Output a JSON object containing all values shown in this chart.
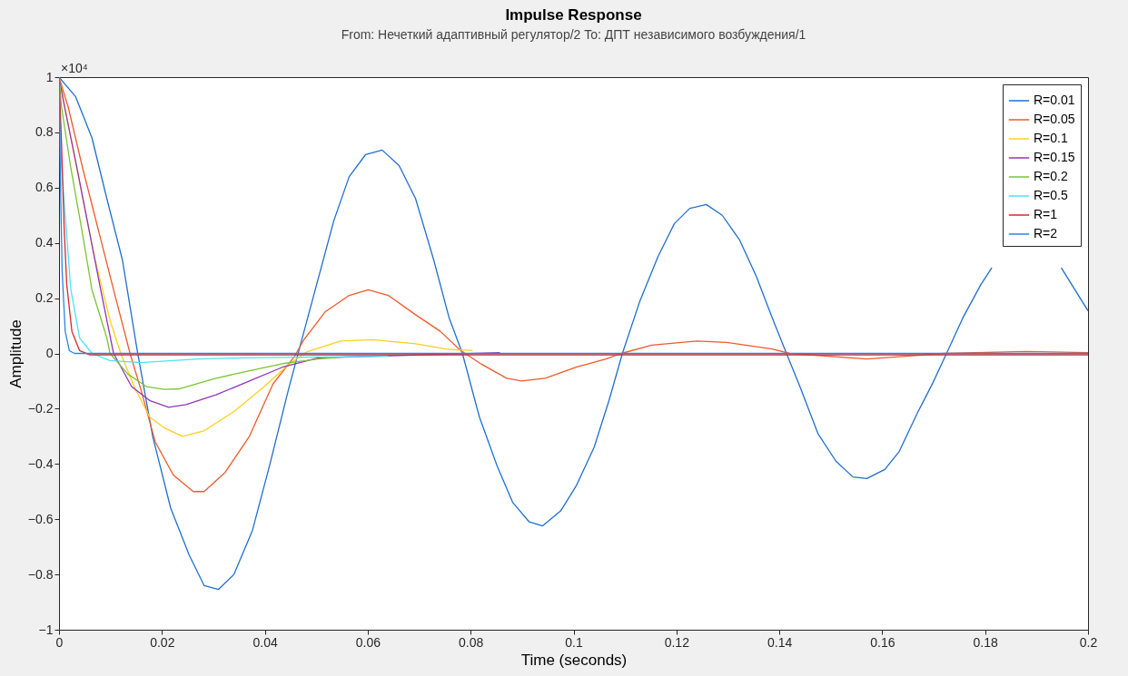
{
  "chart_data": {
    "type": "line",
    "title": "Impulse Response",
    "subtitle": "From: Нечеткий адаптивный регулятор/2 To: ДПТ независимого возбуждения/1",
    "xlabel": "Time (seconds)",
    "ylabel": "Amplitude",
    "annotations": [
      "×10⁴"
    ],
    "xlim": [
      0,
      0.2
    ],
    "xticks": [
      0,
      0.02,
      0.04,
      0.06,
      0.08,
      0.1,
      0.12,
      0.14,
      0.16,
      0.18,
      0.2
    ],
    "ylim": [
      -1,
      1
    ],
    "yticks": [
      -1,
      -0.8,
      -0.6,
      -0.4,
      -0.2,
      0,
      0.2,
      0.4,
      0.6,
      0.8,
      1
    ],
    "grid": false,
    "legend": "top right",
    "series": [
      {
        "name": "R=0.01",
        "color": "#1f6fd1",
        "x": [
          0,
          0.0032,
          0.0064,
          0.0093,
          0.0123,
          0.0152,
          0.0182,
          0.0217,
          0.0253,
          0.0282,
          0.031,
          0.034,
          0.0376,
          0.041,
          0.0446,
          0.0469,
          0.0534,
          0.0564,
          0.0596,
          0.0628,
          0.0661,
          0.0693,
          0.0728,
          0.0758,
          0.0784,
          0.0817,
          0.0852,
          0.0882,
          0.0914,
          0.094,
          0.0975,
          0.1005,
          0.104,
          0.1069,
          0.1095,
          0.1129,
          0.1164,
          0.1196,
          0.1226,
          0.1258,
          0.1289,
          0.1323,
          0.1355,
          0.1386,
          0.1416,
          0.144,
          0.1475,
          0.151,
          0.1543,
          0.157,
          0.1605,
          0.1633,
          0.1668,
          0.1698,
          0.1725,
          0.1757,
          0.1792,
          0.1813,
          0.188,
          0.1948,
          0.2
        ],
        "values": [
          1,
          0.93,
          0.78,
          0.56,
          0.34,
          0.01,
          -0.3,
          -0.56,
          -0.73,
          -0.84,
          -0.854,
          -0.8,
          -0.64,
          -0.4,
          -0.13,
          0.03,
          0.48,
          0.64,
          0.72,
          0.736,
          0.68,
          0.56,
          0.34,
          0.13,
          0,
          -0.23,
          -0.41,
          -0.54,
          -0.61,
          -0.624,
          -0.57,
          -0.48,
          -0.34,
          -0.17,
          0,
          0.19,
          0.35,
          0.47,
          0.525,
          0.539,
          0.5,
          0.41,
          0.28,
          0.13,
          -0.01,
          -0.12,
          -0.29,
          -0.39,
          -0.447,
          -0.453,
          -0.42,
          -0.355,
          -0.217,
          -0.108,
          0,
          0.13,
          0.25,
          0.31,
          null,
          0.31,
          0.154
        ]
      },
      {
        "name": "R=0.05",
        "color": "#f05a28",
        "x": [
          0,
          0.0018,
          0.0046,
          0.0076,
          0.0106,
          0.0138,
          0.0159,
          0.0187,
          0.0222,
          0.0261,
          0.0282,
          0.0323,
          0.037,
          0.0416,
          0.0458,
          0.0476,
          0.0517,
          0.0564,
          0.0601,
          0.064,
          0.0693,
          0.0741,
          0.0781,
          0.0822,
          0.087,
          0.0899,
          0.0945,
          0.1005,
          0.1063,
          0.1093,
          0.1152,
          0.124,
          0.1298,
          0.1386,
          0.142,
          0.157,
          0.172,
          0.188,
          0.2
        ],
        "values": [
          1,
          0.89,
          0.67,
          0.45,
          0.23,
          0,
          -0.13,
          -0.32,
          -0.44,
          -0.5,
          -0.5,
          -0.43,
          -0.3,
          -0.11,
          -0.01,
          0.05,
          0.15,
          0.21,
          0.23,
          0.21,
          0.14,
          0.08,
          0.01,
          -0.04,
          -0.09,
          -0.1,
          -0.09,
          -0.05,
          -0.02,
          0,
          0.03,
          0.045,
          0.04,
          0.016,
          0,
          -0.02,
          0,
          0.007,
          0.003
        ]
      },
      {
        "name": "R=0.1",
        "color": "#ffcf1c",
        "x": [
          0,
          0.0023,
          0.0046,
          0.007,
          0.0099,
          0.012,
          0.0146,
          0.0176,
          0.0205,
          0.024,
          0.0282,
          0.034,
          0.0399,
          0.0446,
          0.0481,
          0.0547,
          0.061,
          0.0693,
          0.0752,
          0.0804
        ],
        "values": [
          1,
          0.78,
          0.56,
          0.34,
          0.12,
          0,
          -0.12,
          -0.23,
          -0.27,
          -0.3,
          -0.28,
          -0.21,
          -0.12,
          -0.04,
          0.005,
          0.045,
          0.05,
          0.035,
          0.016,
          0.01
        ]
      },
      {
        "name": "R=0.15",
        "color": "#9236b8",
        "x": [
          0,
          0.0011,
          0.0035,
          0.0058,
          0.0081,
          0.0106,
          0.0141,
          0.0176,
          0.0213,
          0.0247,
          0.0305,
          0.037,
          0.0434,
          0.0504,
          0.0857
        ],
        "values": [
          1,
          0.89,
          0.67,
          0.45,
          0.23,
          0,
          -0.12,
          -0.17,
          -0.195,
          -0.185,
          -0.15,
          -0.1,
          -0.05,
          -0.016,
          0.003
        ]
      },
      {
        "name": "R=0.2",
        "color": "#7ac531",
        "x": [
          0,
          0.0005,
          0.0023,
          0.0044,
          0.0064,
          0.0093,
          0.0099,
          0.0134,
          0.017,
          0.0205,
          0.0235,
          0.03,
          0.0364,
          0.0434,
          0.0504,
          0.056
        ],
        "values": [
          1,
          0.89,
          0.67,
          0.45,
          0.23,
          0.056,
          0,
          -0.075,
          -0.12,
          -0.13,
          -0.128,
          -0.092,
          -0.065,
          -0.037,
          -0.02,
          -0.012
        ]
      },
      {
        "name": "R=0.5",
        "color": "#4fe0fa",
        "x": [
          0,
          0.0005,
          0.0014,
          0.0023,
          0.004,
          0.0064,
          0.0099,
          0.0159,
          0.027,
          0.0364,
          0.064
        ],
        "values": [
          1,
          0.67,
          0.45,
          0.23,
          0.056,
          0,
          -0.026,
          -0.033,
          -0.02,
          -0.016,
          -0.01
        ]
      },
      {
        "name": "R=1",
        "color": "#d42a2a",
        "x": [
          0,
          0.0005,
          0.001,
          0.0015,
          0.0025,
          0.004,
          0.006,
          0.2
        ],
        "values": [
          1,
          0.75,
          0.45,
          0.25,
          0.08,
          0.01,
          -0.005,
          -0.005
        ]
      },
      {
        "name": "R=2",
        "color": "#2a85e8",
        "x": [
          0,
          0.0003,
          0.0006,
          0.0012,
          0.002,
          0.003,
          0.2
        ],
        "values": [
          1,
          0.6,
          0.3,
          0.08,
          0.01,
          0,
          0
        ]
      }
    ]
  }
}
